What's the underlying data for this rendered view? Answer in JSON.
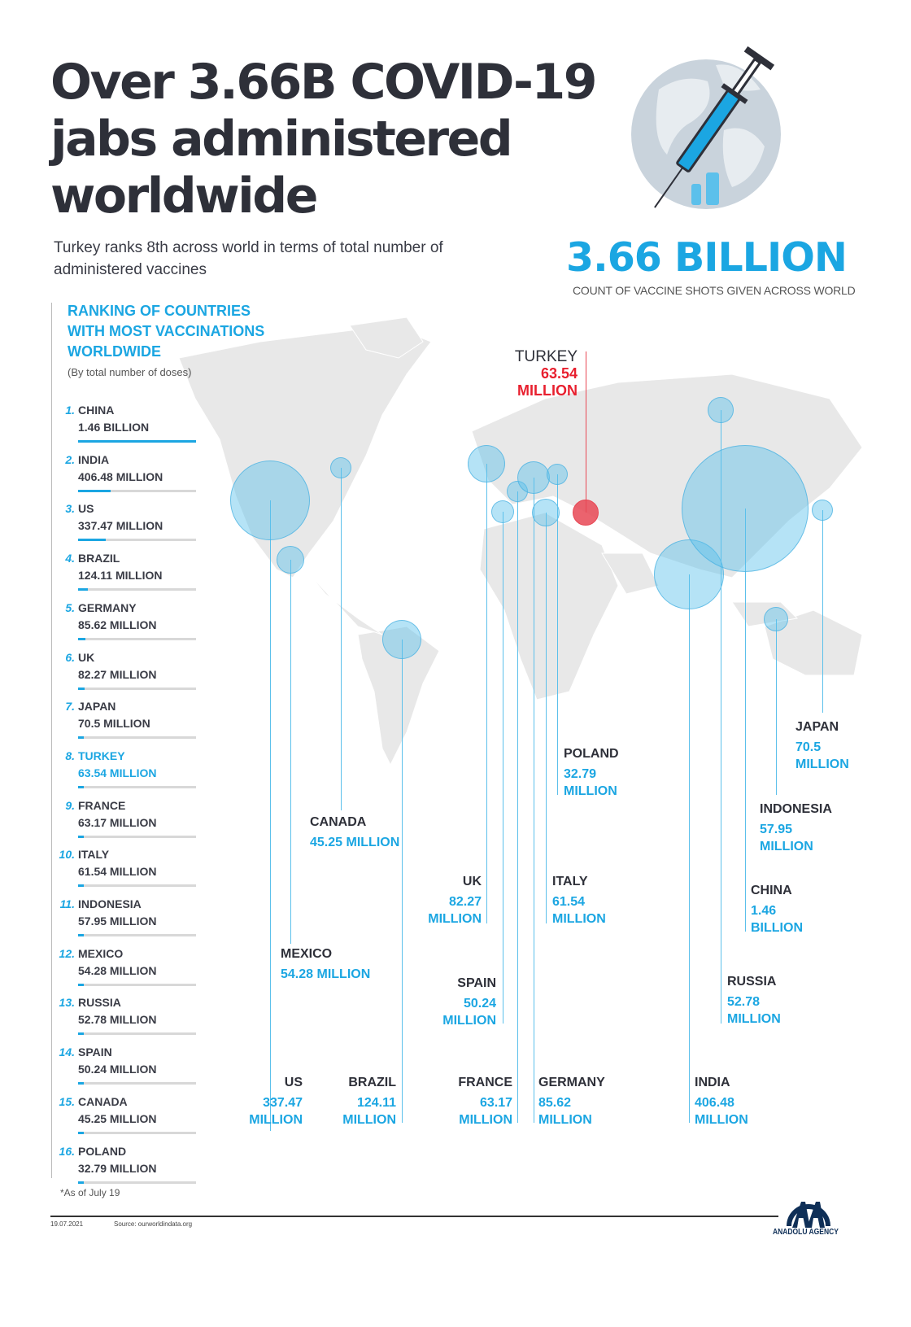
{
  "header": {
    "title_lines": [
      "Over 3.66B COVID-19",
      "jabs administered",
      "worldwide"
    ],
    "subtitle": "Turkey ranks 8th across world in terms of total number of administered vaccines",
    "total": "3.66 BILLION",
    "total_caption": "COUNT OF VACCINE SHOTS GIVEN ACROSS WORLD"
  },
  "ranking": {
    "heading_lines": [
      "RANKING OF COUNTRIES",
      "WITH MOST VACCINATIONS",
      "WORLDWIDE"
    ],
    "subheading": "(By total number of doses)",
    "items": [
      {
        "rank": "1.",
        "name": "CHINA",
        "value_text": "1.46 BILLION"
      },
      {
        "rank": "2.",
        "name": "INDIA",
        "value_text": "406.48 MILLION"
      },
      {
        "rank": "3.",
        "name": "US",
        "value_text": "337.47 MILLION"
      },
      {
        "rank": "4.",
        "name": "BRAZIL",
        "value_text": "124.11 MILLION"
      },
      {
        "rank": "5.",
        "name": "GERMANY",
        "value_text": "85.62 MILLION"
      },
      {
        "rank": "6.",
        "name": "UK",
        "value_text": "82.27 MILLION"
      },
      {
        "rank": "7.",
        "name": "JAPAN",
        "value_text": "70.5 MILLION"
      },
      {
        "rank": "8.",
        "name": "TURKEY",
        "value_text": "63.54 MILLION"
      },
      {
        "rank": "9.",
        "name": "FRANCE",
        "value_text": "63.17 MILLION"
      },
      {
        "rank": "10.",
        "name": "ITALY",
        "value_text": "61.54 MILLION"
      },
      {
        "rank": "11.",
        "name": "INDONESIA",
        "value_text": "57.95 MILLION"
      },
      {
        "rank": "12.",
        "name": "MEXICO",
        "value_text": "54.28 MILLION"
      },
      {
        "rank": "13.",
        "name": "RUSSIA",
        "value_text": "52.78 MILLION"
      },
      {
        "rank": "14.",
        "name": "SPAIN",
        "value_text": "50.24 MILLION"
      },
      {
        "rank": "15.",
        "name": "CANADA",
        "value_text": "45.25 MILLION"
      },
      {
        "rank": "16.",
        "name": "POLAND",
        "value_text": "32.79 MILLION"
      }
    ]
  },
  "map_labels": [
    {
      "id": "us",
      "name": "US",
      "value": "337.47",
      "unit": "MILLION"
    },
    {
      "id": "brazil",
      "name": "BRAZIL",
      "value": "124.11",
      "unit": "MILLION"
    },
    {
      "id": "mexico",
      "name": "MEXICO",
      "value": "54.28",
      "unit": "MILLION"
    },
    {
      "id": "canada",
      "name": "CANADA",
      "value": "45.25",
      "unit": "MILLION"
    },
    {
      "id": "uk",
      "name": "UK",
      "value": "82.27",
      "unit": "MILLION"
    },
    {
      "id": "spain",
      "name": "SPAIN",
      "value": "50.24",
      "unit": "MILLION"
    },
    {
      "id": "france",
      "name": "FRANCE",
      "value": "63.17",
      "unit": "MILLION"
    },
    {
      "id": "germany",
      "name": "GERMANY",
      "value": "85.62",
      "unit": "MILLION"
    },
    {
      "id": "italy",
      "name": "ITALY",
      "value": "61.54",
      "unit": "MILLION"
    },
    {
      "id": "poland",
      "name": "POLAND",
      "value": "32.79",
      "unit": "MILLION"
    },
    {
      "id": "turkey",
      "name": "TURKEY",
      "value": "63.54",
      "unit": "MILLION"
    },
    {
      "id": "india",
      "name": "INDIA",
      "value": "406.48",
      "unit": "MILLION"
    },
    {
      "id": "russia",
      "name": "RUSSIA",
      "value": "52.78",
      "unit": "MILLION"
    },
    {
      "id": "china",
      "name": "CHINA",
      "value": "1.46",
      "unit": "BILLION"
    },
    {
      "id": "indonesia",
      "name": "INDONESIA",
      "value": "57.95",
      "unit": "MILLION"
    },
    {
      "id": "japan",
      "name": "JAPAN",
      "value": "70.5",
      "unit": "MILLION"
    }
  ],
  "footer": {
    "footnote": "*As of July 19",
    "date": "19.07.2021",
    "source": "Source: ourworldindata.org",
    "logo_text": "ANADOLU AGENCY"
  },
  "colors": {
    "accent": "#1ba6e2",
    "highlight": "#e84855",
    "title": "#2e3039"
  },
  "chart_data": {
    "type": "bar",
    "title": "Ranking of countries with most vaccinations worldwide",
    "subtitle": "(By total number of doses)",
    "unit": "million doses",
    "categories": [
      "China",
      "India",
      "US",
      "Brazil",
      "Germany",
      "UK",
      "Japan",
      "Turkey",
      "France",
      "Italy",
      "Indonesia",
      "Mexico",
      "Russia",
      "Spain",
      "Canada",
      "Poland"
    ],
    "values": [
      1460,
      406.48,
      337.47,
      124.11,
      85.62,
      82.27,
      70.5,
      63.54,
      63.17,
      61.54,
      57.95,
      54.28,
      52.78,
      50.24,
      45.25,
      32.79
    ],
    "highlight": "Turkey",
    "world_total": "3.66 billion"
  }
}
